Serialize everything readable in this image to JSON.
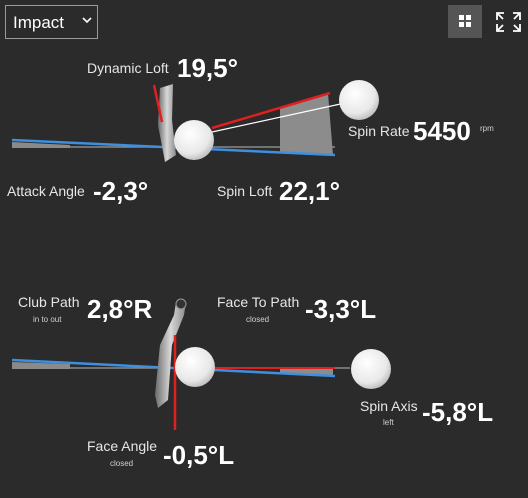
{
  "header": {
    "dropdown": "Impact"
  },
  "top": {
    "dynamic_loft": {
      "label": "Dynamic Loft",
      "value": "19,5°"
    },
    "spin_rate": {
      "label": "Spin Rate",
      "value": "5450",
      "unit": "rpm"
    },
    "attack_angle": {
      "label": "Attack Angle",
      "value": "-2,3°"
    },
    "spin_loft": {
      "label": "Spin Loft",
      "value": "22,1°"
    }
  },
  "bottom": {
    "club_path": {
      "label": "Club Path",
      "sub": "in to out",
      "value": "2,8°R"
    },
    "face_to_path": {
      "label": "Face To Path",
      "sub": "closed",
      "value": "-3,3°L"
    },
    "face_angle": {
      "label": "Face Angle",
      "sub": "closed",
      "value": "-0,5°L"
    },
    "spin_axis": {
      "label": "Spin Axis",
      "sub": "left",
      "value": "-5,8°L"
    }
  }
}
